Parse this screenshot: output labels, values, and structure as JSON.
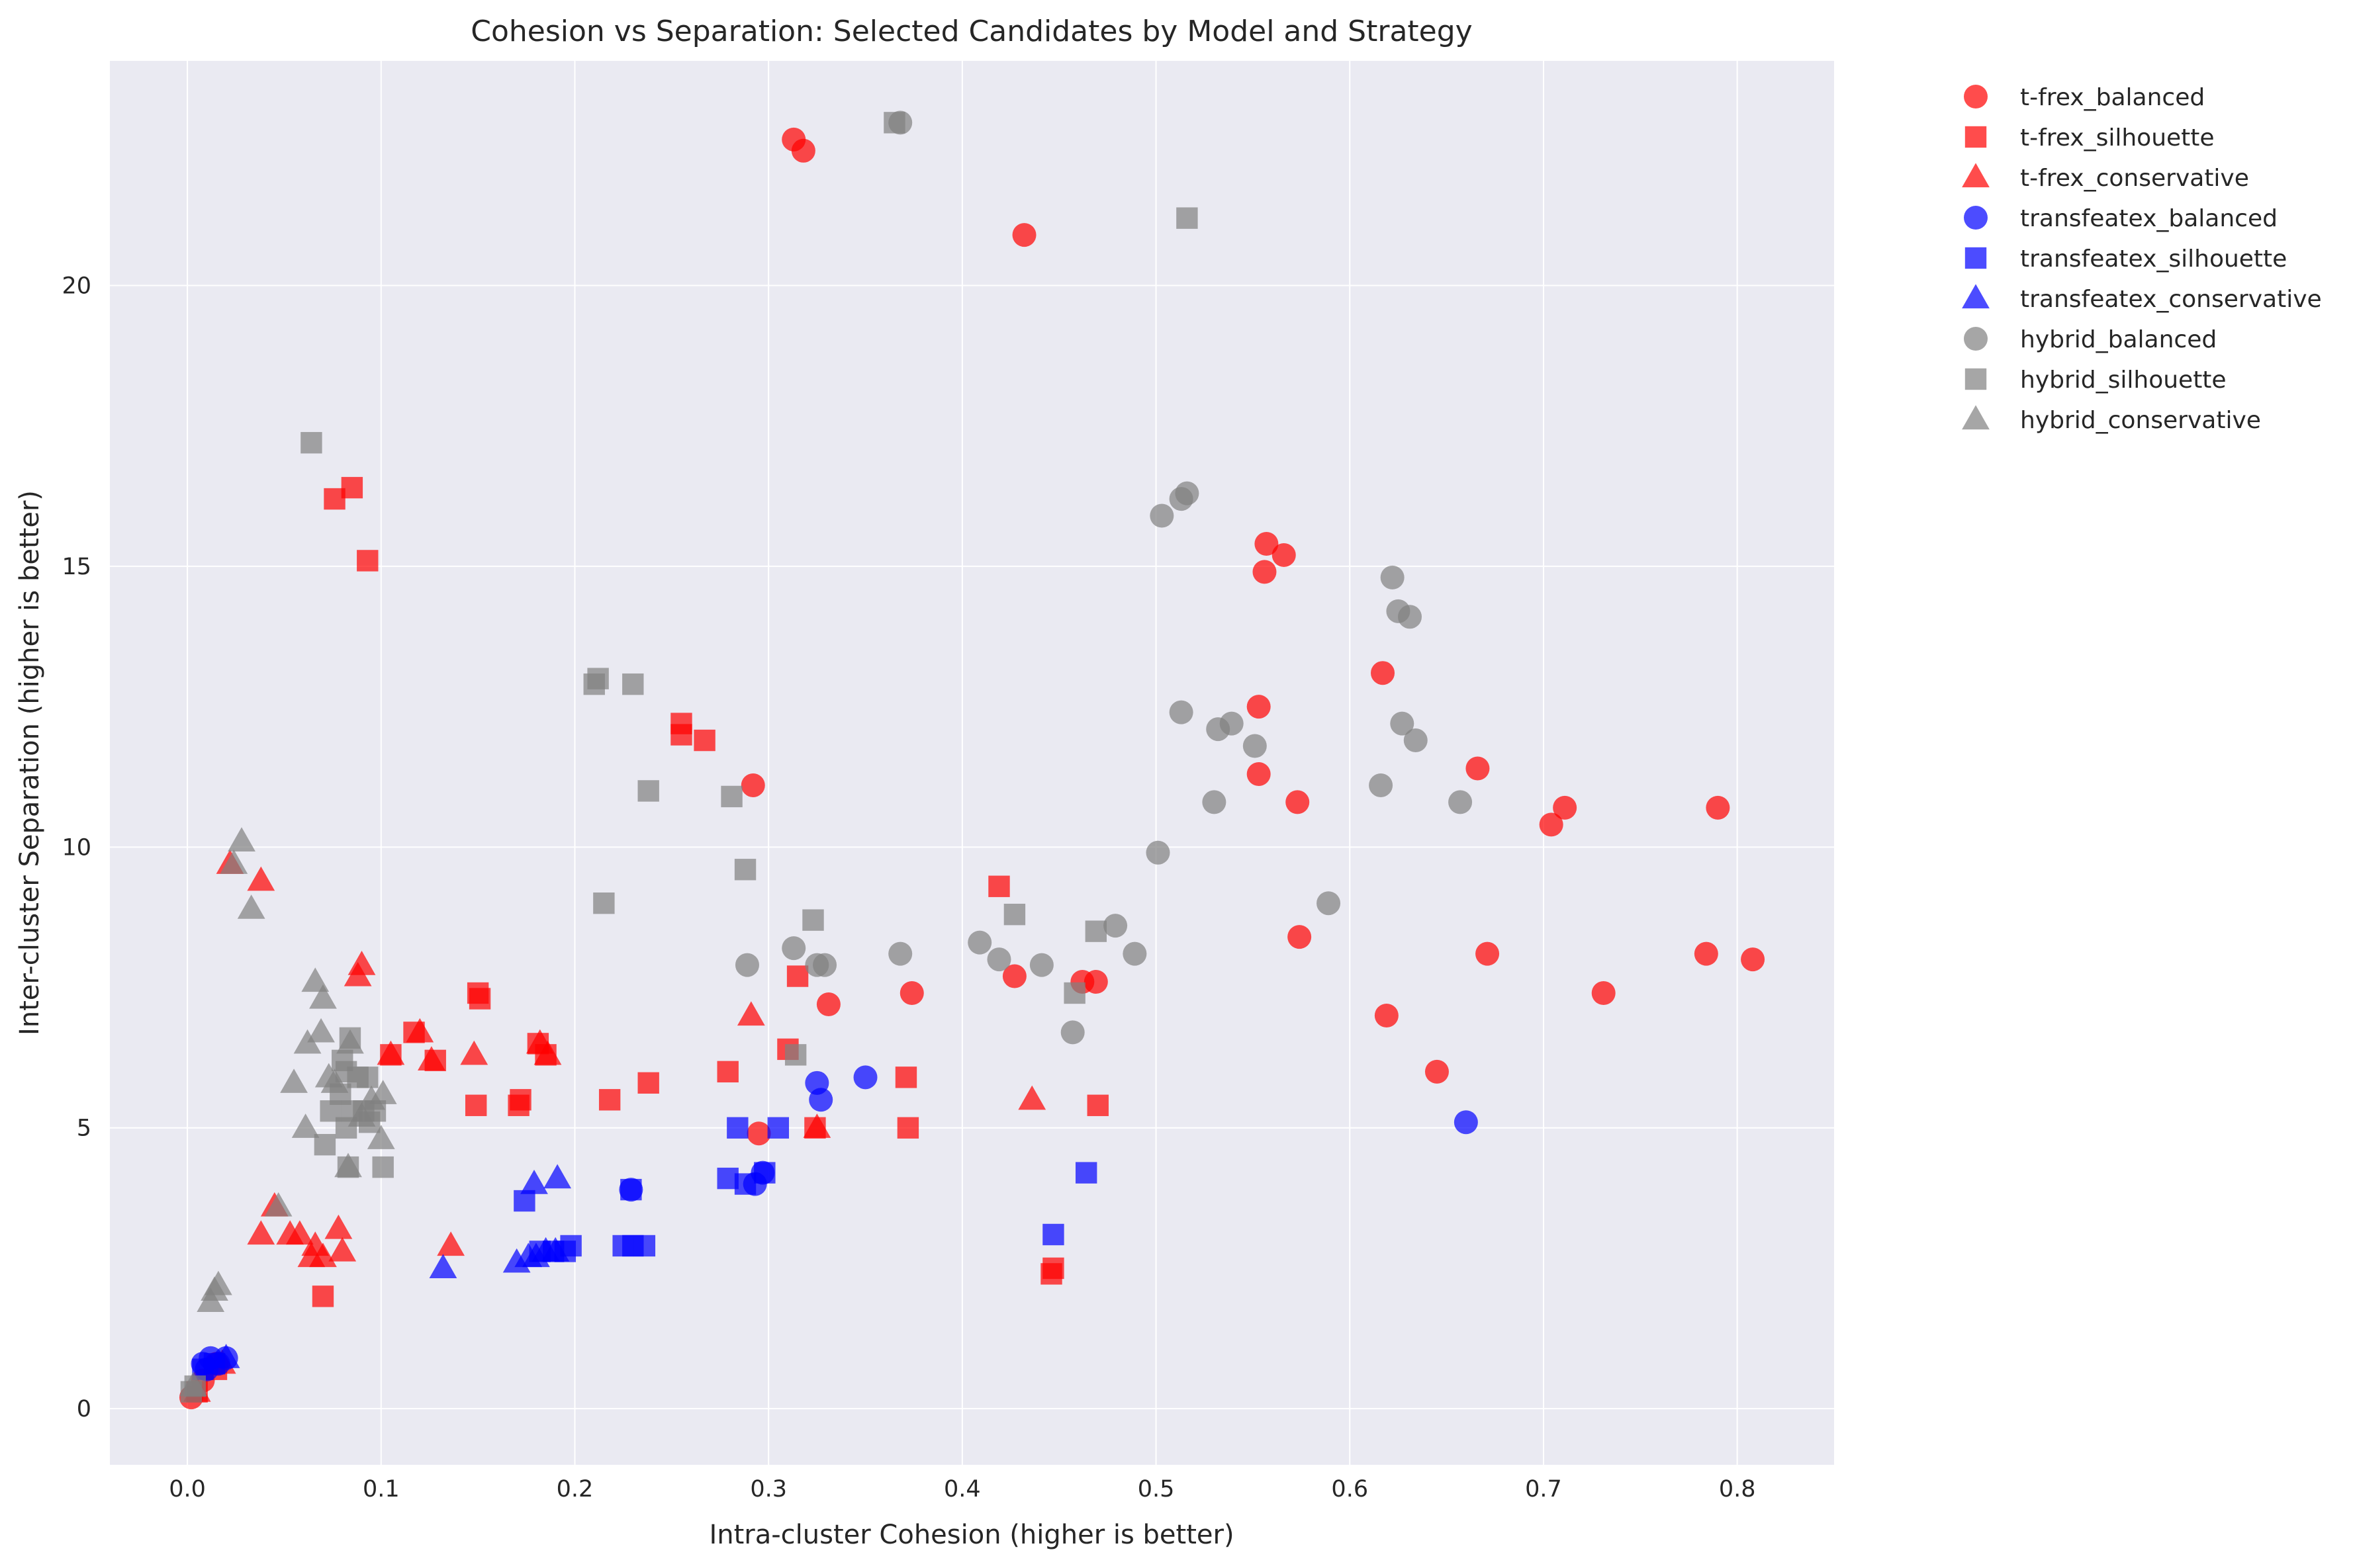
{
  "chart_data": {
    "type": "scatter",
    "title": "Cohesion vs Separation: Selected Candidates by Model and Strategy",
    "xlabel": "Intra-cluster Cohesion (higher is better)",
    "ylabel": "Inter-cluster Separation (higher is better)",
    "xlim": [
      -0.04,
      0.85
    ],
    "ylim": [
      -1.0,
      24.0
    ],
    "xticks": [
      0.0,
      0.1,
      0.2,
      0.3,
      0.4,
      0.5,
      0.6,
      0.7,
      0.8
    ],
    "xtick_labels": [
      "0.0",
      "0.1",
      "0.2",
      "0.3",
      "0.4",
      "0.5",
      "0.6",
      "0.7",
      "0.8"
    ],
    "yticks": [
      0,
      5,
      10,
      15,
      20
    ],
    "ytick_labels": [
      "0",
      "5",
      "10",
      "15",
      "20"
    ],
    "grid": true,
    "legend_position": "outside-right",
    "series": [
      {
        "name": "t-frex_balanced",
        "color": "#ff0000",
        "marker": "circle",
        "points": [
          [
            0.313,
            22.6
          ],
          [
            0.318,
            22.4
          ],
          [
            0.432,
            20.9
          ],
          [
            0.557,
            15.4
          ],
          [
            0.566,
            15.2
          ],
          [
            0.556,
            14.9
          ],
          [
            0.617,
            13.1
          ],
          [
            0.553,
            12.5
          ],
          [
            0.553,
            11.3
          ],
          [
            0.573,
            10.8
          ],
          [
            0.666,
            11.4
          ],
          [
            0.711,
            10.7
          ],
          [
            0.704,
            10.4
          ],
          [
            0.79,
            10.7
          ],
          [
            0.292,
            11.1
          ],
          [
            0.574,
            8.4
          ],
          [
            0.671,
            8.1
          ],
          [
            0.784,
            8.1
          ],
          [
            0.808,
            8.0
          ],
          [
            0.731,
            7.4
          ],
          [
            0.619,
            7.0
          ],
          [
            0.427,
            7.7
          ],
          [
            0.462,
            7.6
          ],
          [
            0.469,
            7.6
          ],
          [
            0.374,
            7.4
          ],
          [
            0.331,
            7.2
          ],
          [
            0.645,
            6.0
          ],
          [
            0.295,
            4.9
          ],
          [
            0.002,
            0.2
          ],
          [
            0.008,
            0.5
          ],
          [
            0.015,
            0.8
          ]
        ]
      },
      {
        "name": "t-frex_silhouette",
        "color": "#ff0000",
        "marker": "square",
        "points": [
          [
            0.085,
            16.4
          ],
          [
            0.076,
            16.2
          ],
          [
            0.093,
            15.1
          ],
          [
            0.255,
            12.2
          ],
          [
            0.255,
            12.0
          ],
          [
            0.267,
            11.9
          ],
          [
            0.419,
            9.3
          ],
          [
            0.15,
            7.4
          ],
          [
            0.151,
            7.3
          ],
          [
            0.315,
            7.7
          ],
          [
            0.31,
            6.4
          ],
          [
            0.117,
            6.7
          ],
          [
            0.105,
            6.3
          ],
          [
            0.128,
            6.2
          ],
          [
            0.181,
            6.5
          ],
          [
            0.185,
            6.3
          ],
          [
            0.279,
            6.0
          ],
          [
            0.371,
            5.9
          ],
          [
            0.238,
            5.8
          ],
          [
            0.172,
            5.5
          ],
          [
            0.218,
            5.5
          ],
          [
            0.149,
            5.4
          ],
          [
            0.171,
            5.4
          ],
          [
            0.47,
            5.4
          ],
          [
            0.372,
            5.0
          ],
          [
            0.324,
            5.0
          ],
          [
            0.07,
            2.0
          ],
          [
            0.447,
            2.5
          ],
          [
            0.446,
            2.4
          ],
          [
            0.005,
            0.3
          ],
          [
            0.015,
            0.7
          ]
        ]
      },
      {
        "name": "t-frex_conservative",
        "color": "#ff0000",
        "marker": "triangle",
        "points": [
          [
            0.022,
            9.7
          ],
          [
            0.038,
            9.4
          ],
          [
            0.09,
            7.9
          ],
          [
            0.088,
            7.7
          ],
          [
            0.148,
            6.3
          ],
          [
            0.105,
            6.3
          ],
          [
            0.12,
            6.7
          ],
          [
            0.126,
            6.2
          ],
          [
            0.182,
            6.5
          ],
          [
            0.186,
            6.3
          ],
          [
            0.291,
            7.0
          ],
          [
            0.436,
            5.5
          ],
          [
            0.325,
            5.0
          ],
          [
            0.045,
            3.6
          ],
          [
            0.038,
            3.1
          ],
          [
            0.053,
            3.1
          ],
          [
            0.058,
            3.1
          ],
          [
            0.078,
            3.2
          ],
          [
            0.066,
            2.9
          ],
          [
            0.08,
            2.8
          ],
          [
            0.064,
            2.7
          ],
          [
            0.07,
            2.7
          ],
          [
            0.136,
            2.9
          ],
          [
            0.005,
            0.3
          ],
          [
            0.018,
            0.8
          ]
        ]
      },
      {
        "name": "transfeatex_balanced",
        "color": "#0000ff",
        "marker": "circle",
        "points": [
          [
            0.66,
            5.1
          ],
          [
            0.35,
            5.9
          ],
          [
            0.325,
            5.8
          ],
          [
            0.327,
            5.5
          ],
          [
            0.229,
            3.9
          ],
          [
            0.297,
            4.2
          ],
          [
            0.293,
            4.0
          ],
          [
            0.02,
            0.9
          ],
          [
            0.012,
            0.9
          ],
          [
            0.008,
            0.8
          ],
          [
            0.016,
            0.8
          ],
          [
            0.01,
            0.7
          ]
        ]
      },
      {
        "name": "transfeatex_silhouette",
        "color": "#0000ff",
        "marker": "square",
        "points": [
          [
            0.284,
            5.0
          ],
          [
            0.305,
            5.0
          ],
          [
            0.464,
            4.2
          ],
          [
            0.229,
            3.9
          ],
          [
            0.298,
            4.2
          ],
          [
            0.279,
            4.1
          ],
          [
            0.288,
            4.0
          ],
          [
            0.174,
            3.7
          ],
          [
            0.447,
            3.1
          ],
          [
            0.225,
            2.9
          ],
          [
            0.23,
            2.9
          ],
          [
            0.236,
            2.9
          ],
          [
            0.198,
            2.9
          ],
          [
            0.195,
            2.8
          ],
          [
            0.189,
            2.8
          ],
          [
            0.182,
            2.8
          ],
          [
            0.008,
            0.7
          ],
          [
            0.014,
            0.8
          ]
        ]
      },
      {
        "name": "transfeatex_conservative",
        "color": "#0000ff",
        "marker": "triangle",
        "points": [
          [
            0.191,
            4.1
          ],
          [
            0.179,
            4.0
          ],
          [
            0.132,
            2.5
          ],
          [
            0.17,
            2.6
          ],
          [
            0.176,
            2.7
          ],
          [
            0.18,
            2.7
          ],
          [
            0.185,
            2.8
          ],
          [
            0.19,
            2.8
          ],
          [
            0.02,
            0.9
          ]
        ]
      },
      {
        "name": "hybrid_balanced",
        "color": "#808080",
        "marker": "circle",
        "points": [
          [
            0.368,
            22.9
          ],
          [
            0.516,
            16.3
          ],
          [
            0.513,
            16.2
          ],
          [
            0.503,
            15.9
          ],
          [
            0.622,
            14.8
          ],
          [
            0.625,
            14.2
          ],
          [
            0.631,
            14.1
          ],
          [
            0.513,
            12.4
          ],
          [
            0.532,
            12.1
          ],
          [
            0.539,
            12.2
          ],
          [
            0.627,
            12.2
          ],
          [
            0.634,
            11.9
          ],
          [
            0.551,
            11.8
          ],
          [
            0.616,
            11.1
          ],
          [
            0.53,
            10.8
          ],
          [
            0.657,
            10.8
          ],
          [
            0.501,
            9.9
          ],
          [
            0.589,
            9.0
          ],
          [
            0.479,
            8.6
          ],
          [
            0.489,
            8.1
          ],
          [
            0.409,
            8.3
          ],
          [
            0.419,
            8.0
          ],
          [
            0.441,
            7.9
          ],
          [
            0.368,
            8.1
          ],
          [
            0.313,
            8.2
          ],
          [
            0.289,
            7.9
          ],
          [
            0.325,
            7.9
          ],
          [
            0.329,
            7.9
          ],
          [
            0.457,
            6.7
          ]
        ]
      },
      {
        "name": "hybrid_silhouette",
        "color": "#808080",
        "marker": "square",
        "points": [
          [
            0.365,
            22.9
          ],
          [
            0.516,
            21.2
          ],
          [
            0.064,
            17.2
          ],
          [
            0.212,
            13.0
          ],
          [
            0.21,
            12.9
          ],
          [
            0.23,
            12.9
          ],
          [
            0.238,
            11.0
          ],
          [
            0.281,
            10.9
          ],
          [
            0.288,
            9.6
          ],
          [
            0.215,
            9.0
          ],
          [
            0.323,
            8.7
          ],
          [
            0.427,
            8.8
          ],
          [
            0.469,
            8.5
          ],
          [
            0.458,
            7.4
          ],
          [
            0.314,
            6.3
          ],
          [
            0.084,
            6.6
          ],
          [
            0.08,
            6.2
          ],
          [
            0.082,
            6.0
          ],
          [
            0.088,
            5.9
          ],
          [
            0.093,
            5.9
          ],
          [
            0.079,
            5.6
          ],
          [
            0.085,
            5.3
          ],
          [
            0.074,
            5.3
          ],
          [
            0.091,
            5.3
          ],
          [
            0.097,
            5.3
          ],
          [
            0.094,
            5.1
          ],
          [
            0.082,
            5.0
          ],
          [
            0.071,
            4.7
          ],
          [
            0.083,
            4.3
          ],
          [
            0.101,
            4.3
          ],
          [
            0.002,
            0.3
          ],
          [
            0.004,
            0.4
          ]
        ]
      },
      {
        "name": "hybrid_conservative",
        "color": "#808080",
        "marker": "triangle",
        "points": [
          [
            0.028,
            10.1
          ],
          [
            0.024,
            9.7
          ],
          [
            0.033,
            8.9
          ],
          [
            0.066,
            7.6
          ],
          [
            0.07,
            7.3
          ],
          [
            0.069,
            6.7
          ],
          [
            0.062,
            6.5
          ],
          [
            0.084,
            6.5
          ],
          [
            0.073,
            5.9
          ],
          [
            0.076,
            5.8
          ],
          [
            0.055,
            5.8
          ],
          [
            0.101,
            5.6
          ],
          [
            0.095,
            5.5
          ],
          [
            0.09,
            5.2
          ],
          [
            0.061,
            5.0
          ],
          [
            0.1,
            4.8
          ],
          [
            0.083,
            4.3
          ],
          [
            0.047,
            3.6
          ],
          [
            0.016,
            2.2
          ],
          [
            0.014,
            2.1
          ],
          [
            0.012,
            1.9
          ],
          [
            0.003,
            0.4
          ]
        ]
      }
    ]
  }
}
